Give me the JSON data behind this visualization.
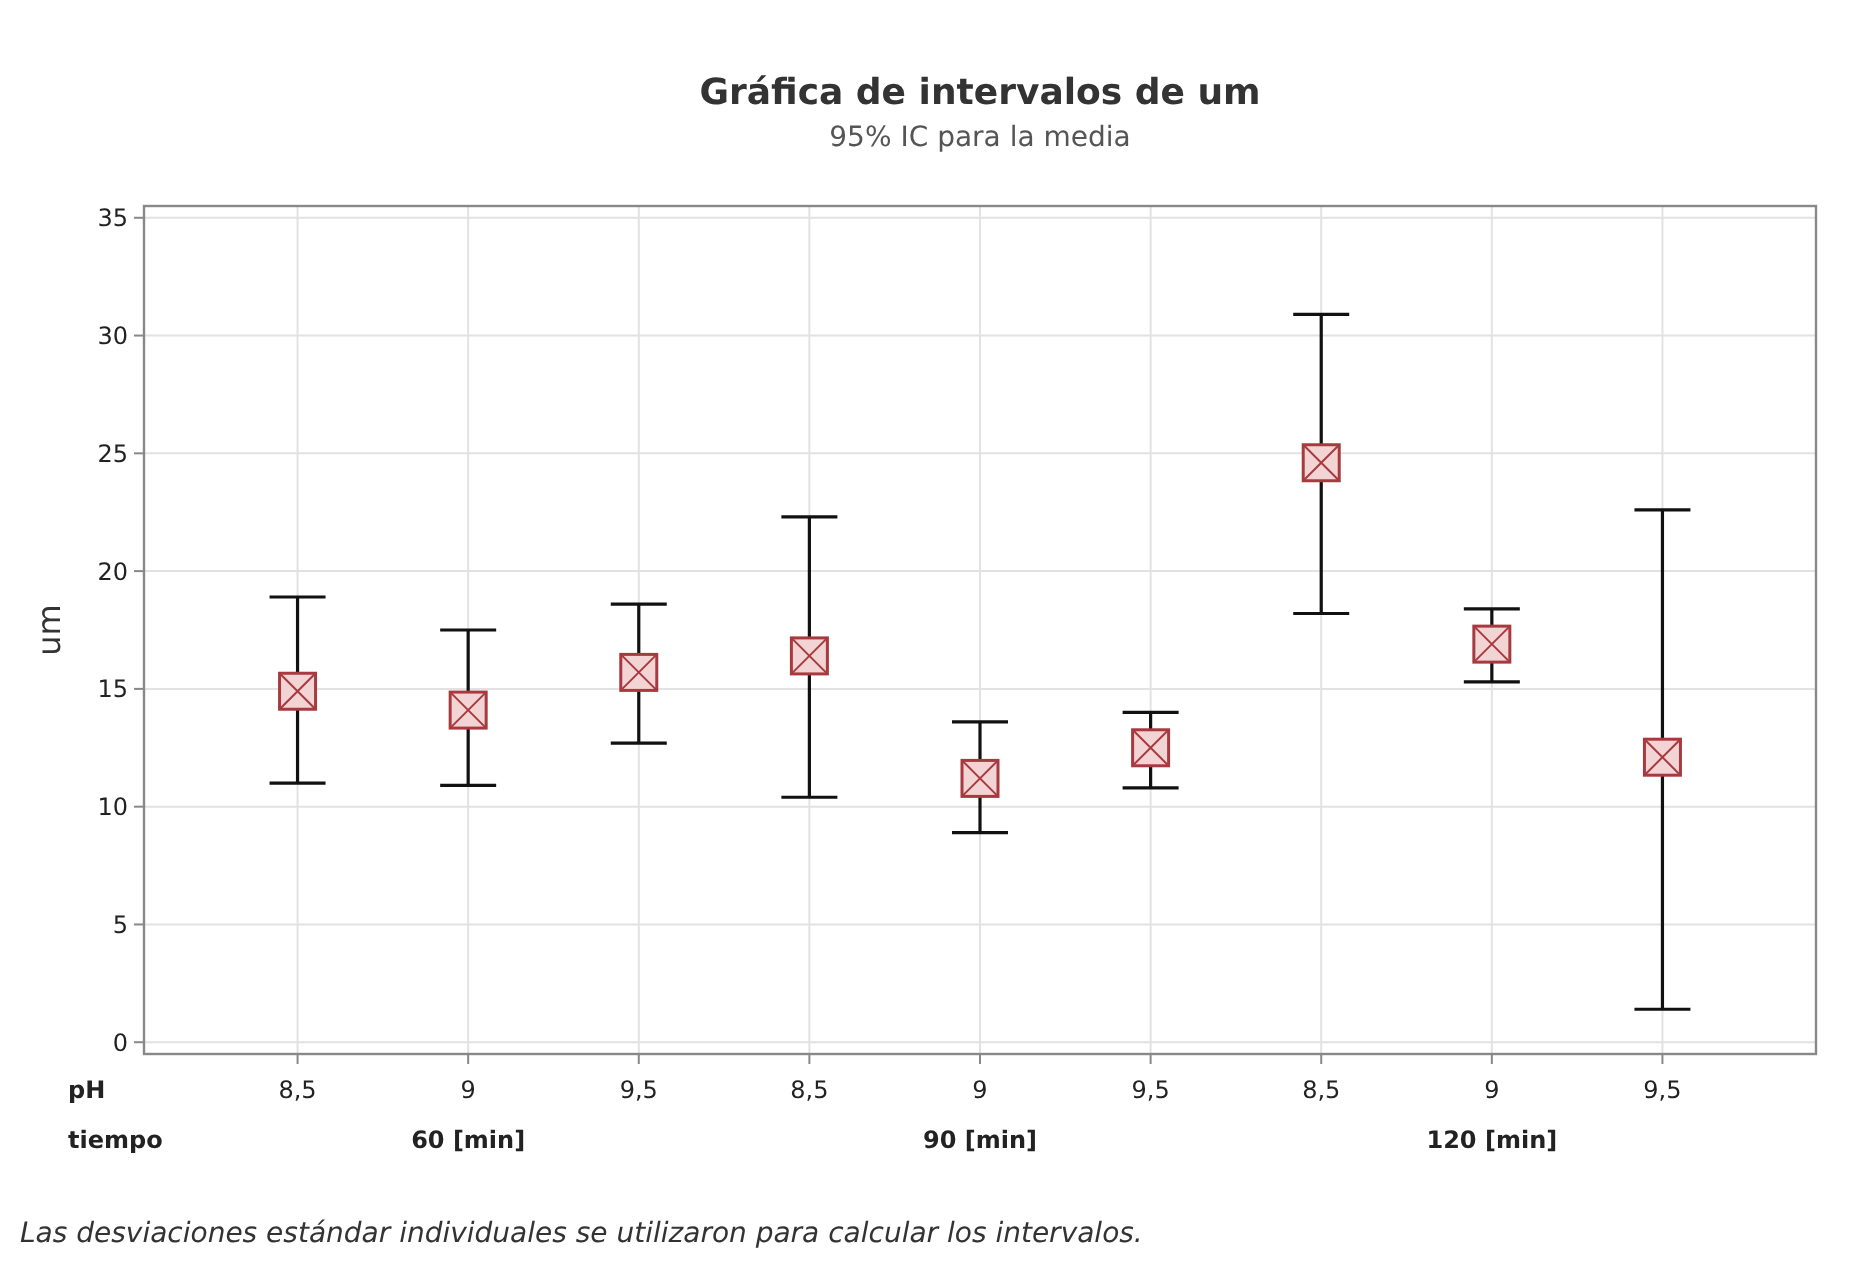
{
  "chart_data": {
    "type": "scatter",
    "title": "Gráfica de intervalos de um",
    "subtitle": "95% IC para la media",
    "ylabel": "um",
    "categories": [
      "8,5",
      "9",
      "9,5",
      "8,5",
      "9",
      "9,5",
      "8,5",
      "9",
      "9,5"
    ],
    "series": [
      {
        "color": "#a83a3f",
        "values": [
          14.9,
          14.1,
          15.7,
          16.4,
          11.2,
          12.5,
          24.6,
          16.9,
          12.1
        ],
        "errors": [
          [
            11.0,
            18.9
          ],
          [
            10.9,
            17.5
          ],
          [
            12.7,
            18.6
          ],
          [
            10.4,
            22.3
          ],
          [
            8.9,
            13.6
          ],
          [
            10.8,
            14.0
          ],
          [
            18.2,
            30.9
          ],
          [
            15.3,
            18.4
          ],
          [
            1.4,
            22.6
          ]
        ]
      }
    ],
    "ylim": [
      -0.5,
      35.5
    ],
    "yticks": [
      0,
      5,
      10,
      15,
      20,
      25,
      30,
      35
    ],
    "grid": true,
    "marker": "square",
    "annotations": [
      "pH",
      "tiempo",
      "60 [min]",
      "90 [min]",
      "120 [min]",
      "Las desviaciones estándar individuales se utilizaron para calcular los intervalos."
    ]
  }
}
